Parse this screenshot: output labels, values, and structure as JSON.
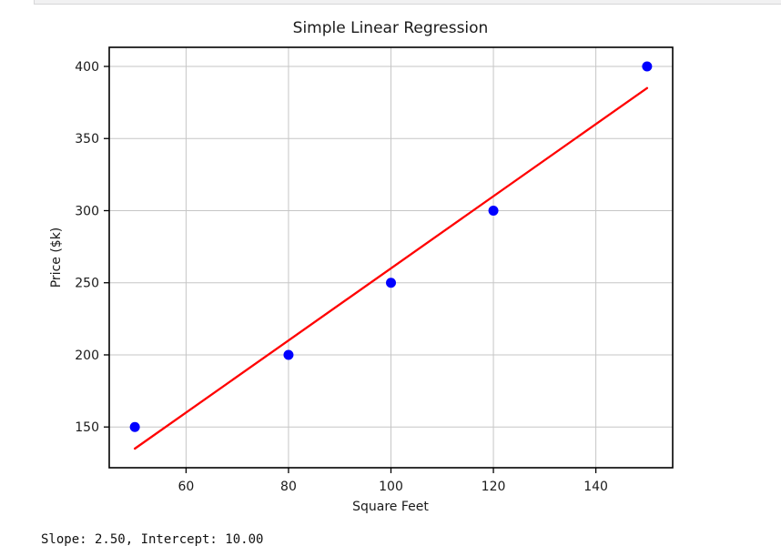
{
  "console_text": "Slope: 2.50, Intercept: 10.00",
  "chart_data": {
    "type": "scatter",
    "title": "Simple Linear Regression",
    "xlabel": "Square Feet",
    "ylabel": "Price ($k)",
    "points": {
      "x": [
        50,
        80,
        100,
        120,
        150
      ],
      "y": [
        150,
        200,
        250,
        300,
        400
      ]
    },
    "regression_line": {
      "slope": 2.5,
      "intercept": 10.0,
      "x_start": 50,
      "x_end": 150,
      "label": "Slope: 2.50, Intercept: 10.00"
    },
    "xlim": [
      45,
      155
    ],
    "ylim": [
      121.75,
      413.25
    ],
    "xticks": [
      60,
      80,
      100,
      120,
      140
    ],
    "yticks": [
      150,
      200,
      250,
      300,
      350,
      400
    ],
    "grid": true,
    "legend": "none",
    "colors": {
      "points": "#0000ff",
      "line": "#ff0000",
      "grid": "#c6c6c6",
      "spine": "#000000",
      "text": "#1a1a1a"
    }
  }
}
